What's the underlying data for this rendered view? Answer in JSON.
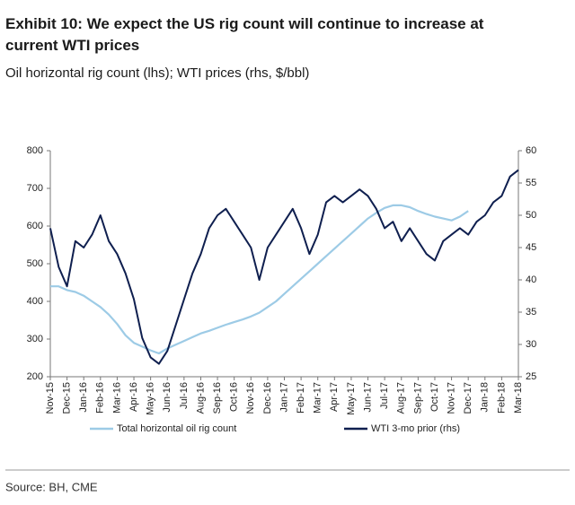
{
  "chart_data": {
    "type": "line",
    "title": "Exhibit 10: We expect the US rig count will continue to increase at current WTI prices",
    "subtitle": "Oil horizontal rig count (lhs); WTI prices (rhs, $/bbl)",
    "source": "Source: BH, CME",
    "categories": [
      "Nov-15",
      null,
      "Dec-15",
      null,
      "Jan-16",
      null,
      "Feb-16",
      null,
      "Mar-16",
      null,
      "Apr-16",
      null,
      "May-16",
      null,
      "Jun-16",
      null,
      "Jul-16",
      null,
      "Aug-16",
      null,
      "Sep-16",
      null,
      "Oct-16",
      null,
      "Nov-16",
      null,
      "Dec-16",
      null,
      "Jan-17",
      null,
      "Feb-17",
      null,
      "Mar-17",
      null,
      "Apr-17",
      null,
      "May-17",
      null,
      "Jun-17",
      null,
      "Jul-17",
      null,
      "Aug-17",
      null,
      "Sep-17",
      null,
      "Oct-17",
      null,
      "Nov-17",
      null,
      "Dec-17",
      null,
      "Jan-18",
      null,
      "Feb-18",
      null,
      "Mar-18"
    ],
    "series": [
      {
        "name": "Total horizontal oil rig count",
        "color": "#9dcbe6",
        "axis": "y",
        "values": [
          440,
          440,
          430,
          425,
          415,
          400,
          385,
          365,
          340,
          310,
          290,
          280,
          270,
          262,
          275,
          285,
          295,
          305,
          315,
          322,
          330,
          338,
          345,
          352,
          360,
          370,
          385,
          400,
          420,
          440,
          460,
          480,
          500,
          520,
          540,
          560,
          580,
          600,
          620,
          635,
          648,
          655,
          655,
          650,
          640,
          632,
          625,
          620,
          615,
          625,
          640,
          null,
          null,
          null,
          null,
          null,
          null
        ]
      },
      {
        "name": "WTI 3-mo prior (rhs)",
        "color": "#0f1f4f",
        "axis": "y2",
        "values": [
          48,
          42,
          39,
          46,
          45,
          47,
          50,
          46,
          44,
          41,
          37,
          31,
          28,
          27,
          29,
          33,
          37,
          41,
          44,
          48,
          50,
          51,
          49,
          47,
          45,
          40,
          45,
          47,
          49,
          51,
          48,
          44,
          47,
          52,
          53,
          52,
          53,
          54,
          53,
          51,
          48,
          49,
          46,
          48,
          46,
          44,
          43,
          46,
          47,
          48,
          47,
          49,
          50,
          52,
          53,
          56,
          57
        ]
      }
    ],
    "ylim": [
      200,
      800
    ],
    "yticks": [
      200,
      300,
      400,
      500,
      600,
      700,
      800
    ],
    "y2lim": [
      25,
      60
    ],
    "y2ticks": [
      25,
      30,
      35,
      40,
      45,
      50,
      55,
      60
    ],
    "grid": false
  }
}
